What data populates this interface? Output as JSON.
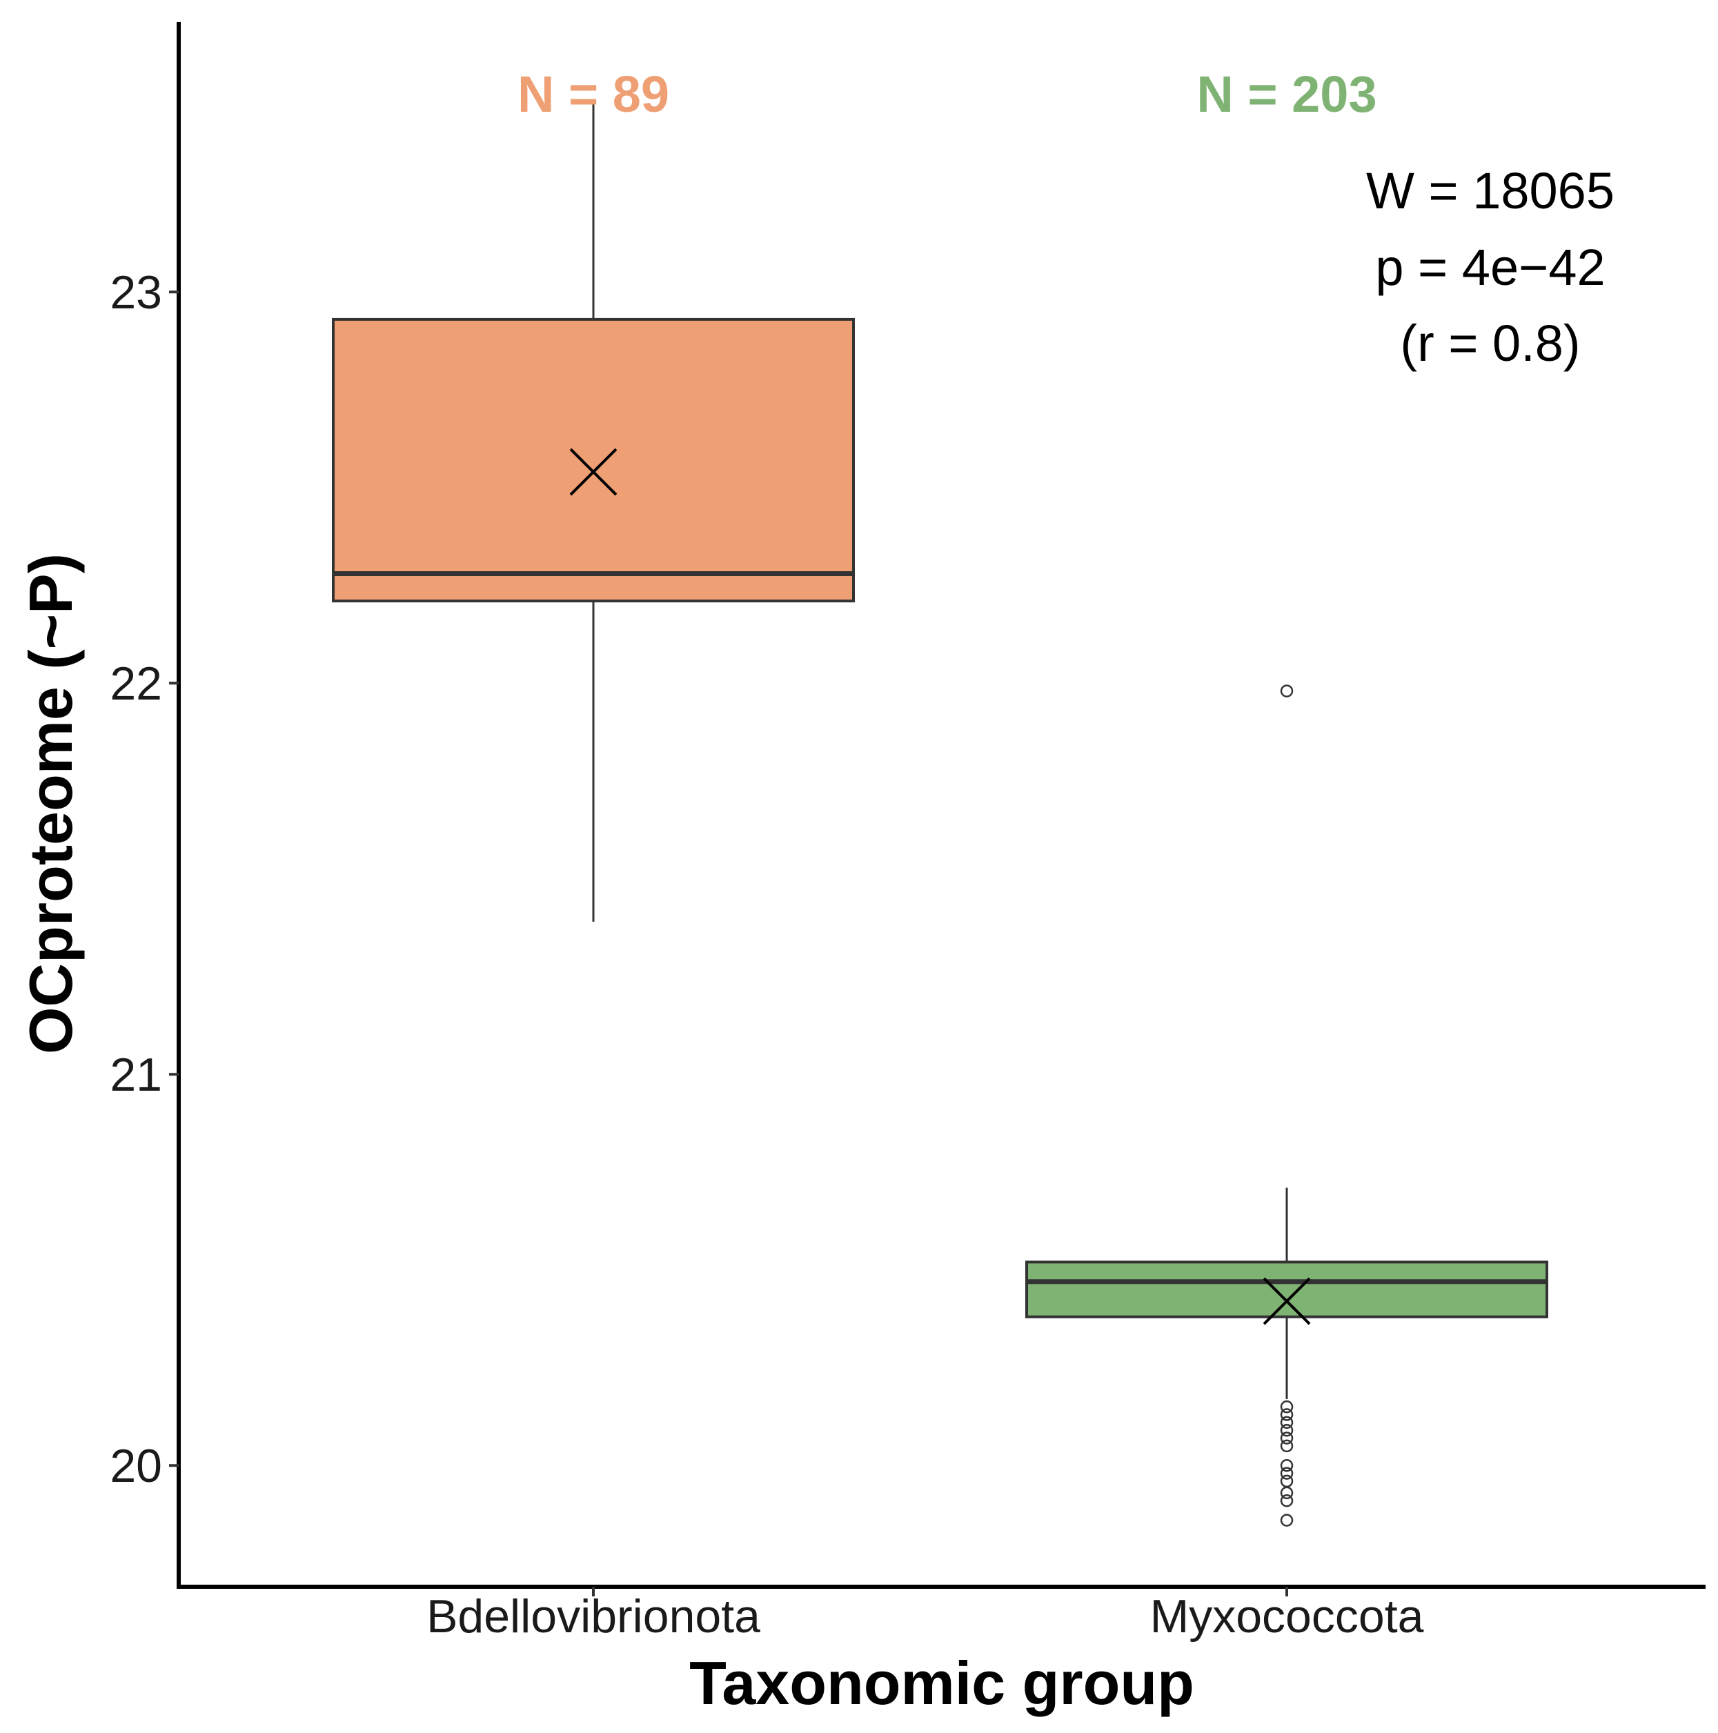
{
  "chart_data": {
    "type": "boxplot",
    "xlabel": "Taxonomic group",
    "ylabel": "OCproteome (~P)",
    "ylim": [
      19.69,
      23.69
    ],
    "yticks": [
      20,
      21,
      22,
      23
    ],
    "categories": [
      "Bdellovibrionota",
      "Myxococcota"
    ],
    "groups": [
      {
        "name": "Bdellovibrionota",
        "n_label": "N =  89",
        "n": 89,
        "color": "#EEA074",
        "whisker_low": 21.39,
        "q1": 22.21,
        "median": 22.28,
        "q3": 22.93,
        "whisker_high": 23.48,
        "mean": 22.54,
        "outliers": []
      },
      {
        "name": "Myxococcota",
        "n_label": "N =  203",
        "n": 203,
        "color": "#7FB374",
        "whisker_low": 20.17,
        "q1": 20.38,
        "median": 20.47,
        "q3": 20.52,
        "whisker_high": 20.71,
        "mean": 20.42,
        "outliers": [
          21.98,
          20.15,
          20.13,
          20.11,
          20.09,
          20.07,
          20.05,
          20.0,
          19.98,
          19.96,
          19.93,
          19.91,
          19.86
        ]
      }
    ],
    "annotations": {
      "w": "W = 18065",
      "p": "p = 4e−42",
      "r": "(r = 0.8)"
    }
  }
}
